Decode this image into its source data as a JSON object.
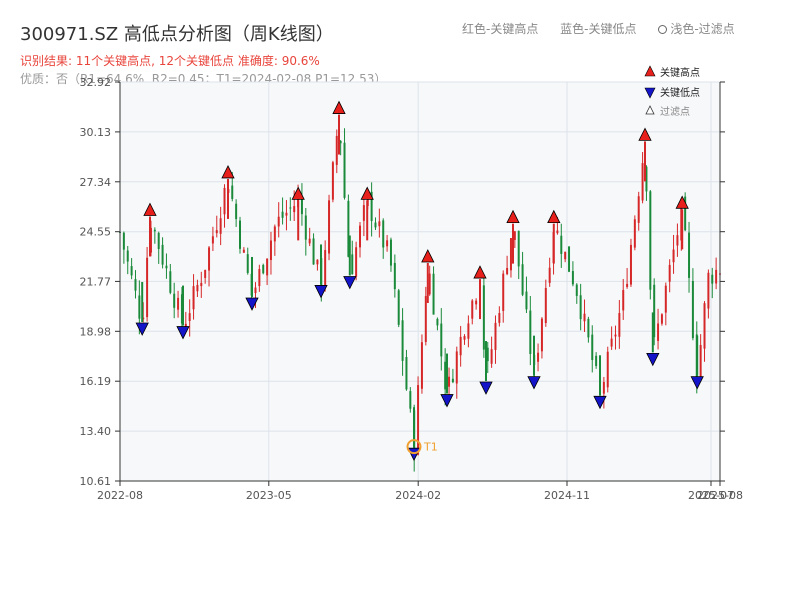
{
  "header": {
    "title": "300971.SZ 高低点分析图（周K线图）",
    "legend_high": "红色-关键高点",
    "legend_low": "蓝色-关键低点",
    "legend_filtered": "浅色-过滤点",
    "summary": "识别结果: 11个关键高点, 12个关键低点  准确度: 90.6%",
    "quality": "优质：否（R1=64.6%, R2=0.45；T1=2024-02-08 P1=12.53）"
  },
  "colors": {
    "up": "#d62728",
    "down": "#1a8a3a",
    "high_marker": "#e8201b",
    "low_marker": "#1414c8",
    "t1": "#f0a030",
    "grid": "#dde3ea",
    "plot_bg": "#f7f8fa"
  },
  "chart_data": {
    "type": "candlestick",
    "frequency": "weekly",
    "ylim": [
      10.61,
      32.92
    ],
    "y_ticks": [
      "10.61",
      "13.40",
      "16.19",
      "18.98",
      "21.77",
      "24.55",
      "27.34",
      "30.13",
      "32.92"
    ],
    "x_ticks": [
      "2022-08",
      "2023-05",
      "2024-02",
      "2024-11",
      "2025-07",
      "2025-08"
    ],
    "x_range": [
      "2022-08",
      "2025-08"
    ],
    "legend": {
      "high": "关键高点",
      "low": "关键低点",
      "filtered": "过滤点"
    },
    "key_highs": [
      {
        "t": 0.05,
        "price": 25.4
      },
      {
        "t": 0.18,
        "price": 27.5
      },
      {
        "t": 0.297,
        "price": 26.3
      },
      {
        "t": 0.365,
        "price": 31.1
      },
      {
        "t": 0.412,
        "price": 26.3
      },
      {
        "t": 0.513,
        "price": 22.8
      },
      {
        "t": 0.6,
        "price": 21.9
      },
      {
        "t": 0.655,
        "price": 25.0
      },
      {
        "t": 0.723,
        "price": 25.0
      },
      {
        "t": 0.875,
        "price": 29.6
      },
      {
        "t": 0.937,
        "price": 25.8
      }
    ],
    "key_lows": [
      {
        "t": 0.037,
        "price": 19.5
      },
      {
        "t": 0.105,
        "price": 19.3
      },
      {
        "t": 0.22,
        "price": 20.9
      },
      {
        "t": 0.335,
        "price": 21.6
      },
      {
        "t": 0.383,
        "price": 22.1
      },
      {
        "t": 0.49,
        "price": 12.5
      },
      {
        "t": 0.545,
        "price": 15.5
      },
      {
        "t": 0.61,
        "price": 16.2
      },
      {
        "t": 0.69,
        "price": 16.5
      },
      {
        "t": 0.8,
        "price": 15.4
      },
      {
        "t": 0.888,
        "price": 17.8
      },
      {
        "t": 0.962,
        "price": 16.5
      }
    ],
    "annotation": {
      "label": "T1",
      "date": "2024-02-08",
      "price": 12.53,
      "t": 0.49
    },
    "price_path": [
      {
        "t": 0.0,
        "price": 24.5
      },
      {
        "t": 0.037,
        "price": 19.5
      },
      {
        "t": 0.05,
        "price": 25.4
      },
      {
        "t": 0.105,
        "price": 19.3
      },
      {
        "t": 0.14,
        "price": 22.5
      },
      {
        "t": 0.18,
        "price": 27.5
      },
      {
        "t": 0.22,
        "price": 20.9
      },
      {
        "t": 0.26,
        "price": 25.0
      },
      {
        "t": 0.297,
        "price": 26.3
      },
      {
        "t": 0.335,
        "price": 21.6
      },
      {
        "t": 0.365,
        "price": 31.1
      },
      {
        "t": 0.383,
        "price": 22.1
      },
      {
        "t": 0.412,
        "price": 26.3
      },
      {
        "t": 0.45,
        "price": 23.0
      },
      {
        "t": 0.49,
        "price": 12.5
      },
      {
        "t": 0.513,
        "price": 22.8
      },
      {
        "t": 0.545,
        "price": 15.5
      },
      {
        "t": 0.575,
        "price": 19.5
      },
      {
        "t": 0.6,
        "price": 21.9
      },
      {
        "t": 0.61,
        "price": 16.2
      },
      {
        "t": 0.655,
        "price": 25.0
      },
      {
        "t": 0.69,
        "price": 16.5
      },
      {
        "t": 0.723,
        "price": 25.0
      },
      {
        "t": 0.76,
        "price": 21.5
      },
      {
        "t": 0.8,
        "price": 15.4
      },
      {
        "t": 0.84,
        "price": 21.0
      },
      {
        "t": 0.875,
        "price": 29.6
      },
      {
        "t": 0.888,
        "price": 17.8
      },
      {
        "t": 0.937,
        "price": 25.8
      },
      {
        "t": 0.962,
        "price": 16.5
      },
      {
        "t": 0.98,
        "price": 22.0
      },
      {
        "t": 1.0,
        "price": 22.5
      }
    ]
  }
}
